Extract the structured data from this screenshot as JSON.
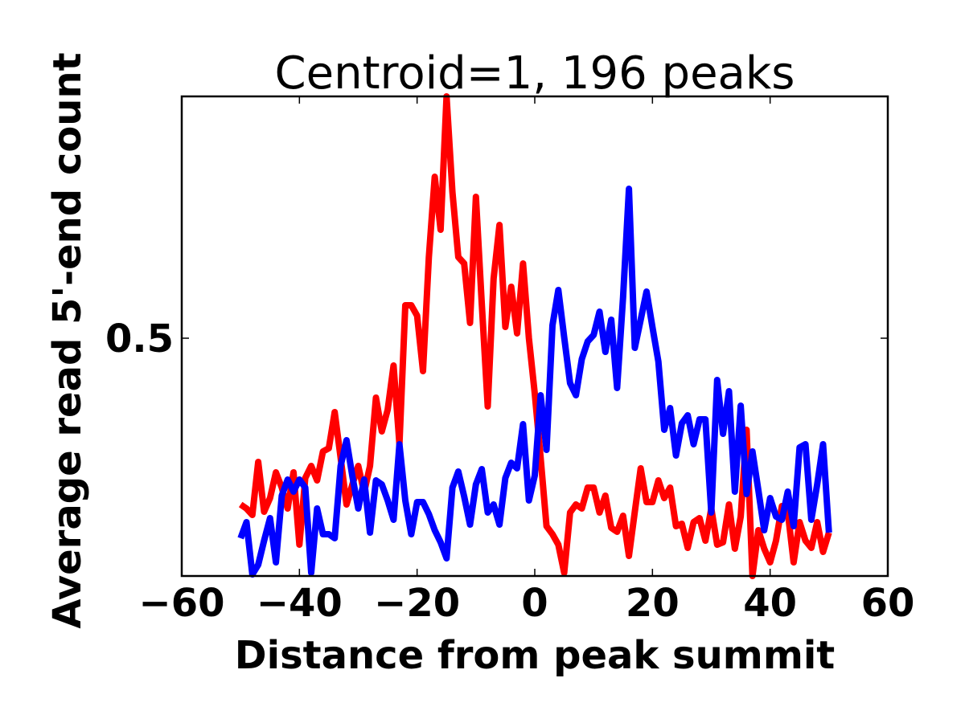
{
  "chart_data": {
    "type": "line",
    "title": "Centroid=1, 196 peaks",
    "xlabel": "Distance from peak summit",
    "ylabel": "Average read 5'-end count",
    "xlim": [
      -60,
      60
    ],
    "ylim": [
      0.204,
      0.801
    ],
    "xticks": [
      -60,
      -40,
      -20,
      0,
      20,
      40,
      60
    ],
    "xtick_labels": [
      "−60",
      "−40",
      "−20",
      "0",
      "20",
      "40",
      "60"
    ],
    "yticks": [
      0.5
    ],
    "ytick_labels": [
      "0.5"
    ],
    "grid": false,
    "x": {
      "start": -50,
      "end": 50,
      "step": 1
    },
    "series": [
      {
        "name": "red",
        "color": "#ff0000",
        "values": [
          0.293,
          0.288,
          0.28,
          0.346,
          0.284,
          0.301,
          0.333,
          0.314,
          0.288,
          0.333,
          0.243,
          0.326,
          0.341,
          0.323,
          0.359,
          0.363,
          0.408,
          0.351,
          0.293,
          0.318,
          0.341,
          0.308,
          0.341,
          0.426,
          0.384,
          0.411,
          0.466,
          0.368,
          0.541,
          0.541,
          0.528,
          0.459,
          0.601,
          0.701,
          0.635,
          0.801,
          0.682,
          0.601,
          0.593,
          0.519,
          0.676,
          0.543,
          0.415,
          0.574,
          0.641,
          0.514,
          0.564,
          0.506,
          0.593,
          0.5,
          0.431,
          0.351,
          0.266,
          0.256,
          0.243,
          0.208,
          0.283,
          0.293,
          0.288,
          0.314,
          0.314,
          0.283,
          0.304,
          0.264,
          0.259,
          0.279,
          0.229,
          0.284,
          0.338,
          0.296,
          0.296,
          0.323,
          0.301,
          0.314,
          0.266,
          0.269,
          0.239,
          0.271,
          0.276,
          0.248,
          0.288,
          0.243,
          0.246,
          0.293,
          0.238,
          0.278,
          0.386,
          0.204,
          0.261,
          0.238,
          0.221,
          0.248,
          0.291,
          0.284,
          0.221,
          0.271,
          0.248,
          0.239,
          0.271,
          0.234,
          0.258
        ]
      },
      {
        "name": "blue",
        "color": "#0000ff",
        "values": [
          0.251,
          0.271,
          0.206,
          0.218,
          0.248,
          0.276,
          0.221,
          0.304,
          0.324,
          0.309,
          0.324,
          0.314,
          0.208,
          0.288,
          0.256,
          0.256,
          0.251,
          0.341,
          0.373,
          0.328,
          0.288,
          0.324,
          0.258,
          0.323,
          0.318,
          0.298,
          0.274,
          0.368,
          0.298,
          0.256,
          0.296,
          0.296,
          0.281,
          0.261,
          0.246,
          0.226,
          0.314,
          0.334,
          0.303,
          0.268,
          0.318,
          0.337,
          0.283,
          0.293,
          0.268,
          0.326,
          0.345,
          0.338,
          0.393,
          0.298,
          0.329,
          0.429,
          0.361,
          0.516,
          0.56,
          0.501,
          0.444,
          0.429,
          0.474,
          0.496,
          0.504,
          0.533,
          0.483,
          0.523,
          0.438,
          0.551,
          0.686,
          0.488,
          0.523,
          0.558,
          0.514,
          0.471,
          0.386,
          0.413,
          0.354,
          0.394,
          0.404,
          0.368,
          0.399,
          0.399,
          0.283,
          0.448,
          0.381,
          0.434,
          0.309,
          0.416,
          0.306,
          0.359,
          0.311,
          0.261,
          0.301,
          0.278,
          0.274,
          0.309,
          0.266,
          0.364,
          0.368,
          0.274,
          0.318,
          0.368,
          0.258
        ]
      }
    ]
  }
}
